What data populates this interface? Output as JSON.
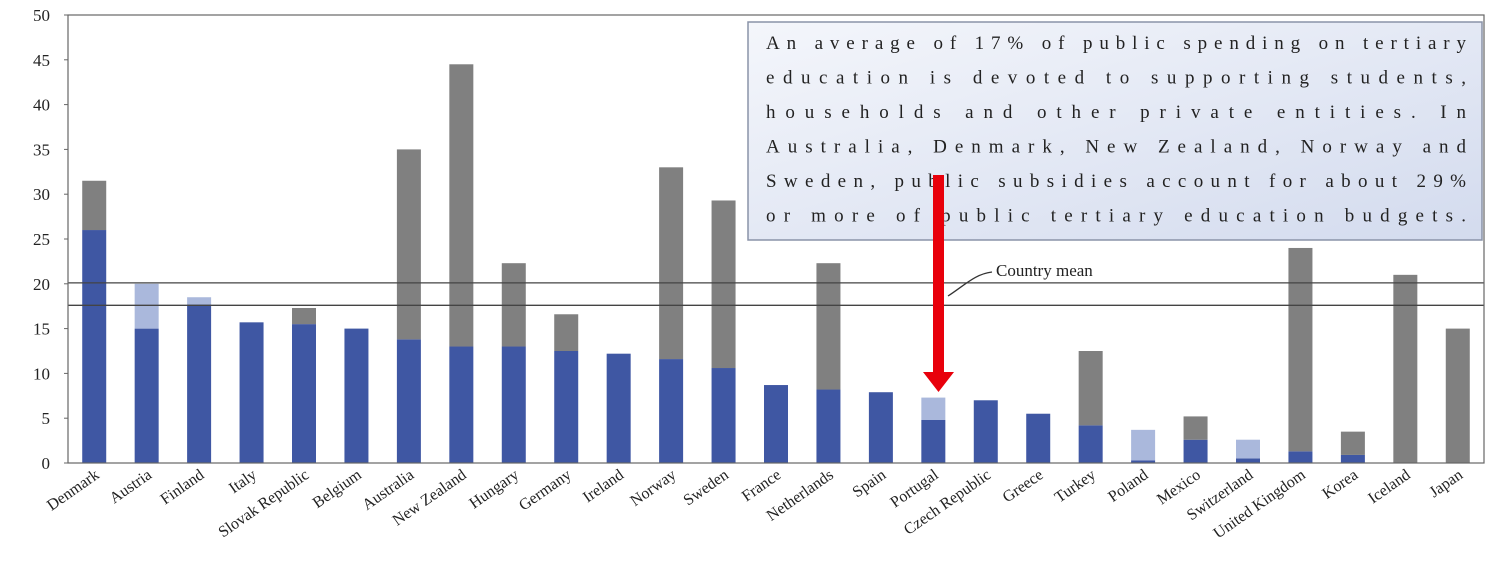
{
  "chart_data": {
    "type": "stacked_bar",
    "categories": [
      "Denmark",
      "Austria",
      "Finland",
      "Italy",
      "Slovak Republic",
      "Belgium",
      "Australia",
      "New Zealand",
      "Hungary",
      "Germany",
      "Ireland",
      "Norway",
      "Sweden",
      "France",
      "Netherlands",
      "Spain",
      "Portugal",
      "Czech Republic",
      "Greece",
      "Turkey",
      "Poland",
      "Mexico",
      "Switzerland",
      "United Kingdom",
      "Korea",
      "Iceland",
      "Japan"
    ],
    "series": [
      {
        "color": "#3f57a3",
        "values": [
          26,
          15,
          17.7,
          15.7,
          15.5,
          15,
          13.8,
          13,
          13,
          12.5,
          12.2,
          11.6,
          10.6,
          8.7,
          8.2,
          7.9,
          4.8,
          7,
          5.5,
          4.2,
          0.3,
          2.6,
          0.5,
          1.3,
          0.9,
          0,
          0
        ]
      },
      {
        "color": "#aab8dc",
        "values": [
          0,
          5,
          0.8,
          0,
          0,
          0,
          0,
          0,
          0,
          0,
          0,
          0,
          0,
          0,
          0,
          0,
          2.5,
          0,
          0,
          0,
          3.4,
          0,
          2.1,
          0,
          0,
          0,
          0
        ]
      },
      {
        "color": "#808080",
        "values": [
          5.5,
          0,
          0,
          0,
          1.8,
          0,
          21.2,
          31.5,
          9.3,
          4.1,
          0,
          21.4,
          18.7,
          0,
          14.1,
          0,
          0,
          0,
          0,
          8.3,
          0,
          2.6,
          0,
          22.7,
          2.6,
          21,
          15
        ]
      }
    ],
    "ylim": [
      0,
      50
    ],
    "yticks": [
      0,
      5,
      10,
      15,
      20,
      25,
      30,
      35,
      40,
      45,
      50
    ],
    "reference_lines": [
      20.1,
      17.6
    ],
    "reference_label": "Country mean",
    "annotation": [
      "An average of 17% of public spending on tertiary",
      "education is devoted to supporting students,",
      "households and other private entities. In",
      "Australia, Denmark, New Zealand, Norway and",
      "Sweden, public subsidies account for about 29%",
      "or more of public tertiary education budgets."
    ]
  }
}
